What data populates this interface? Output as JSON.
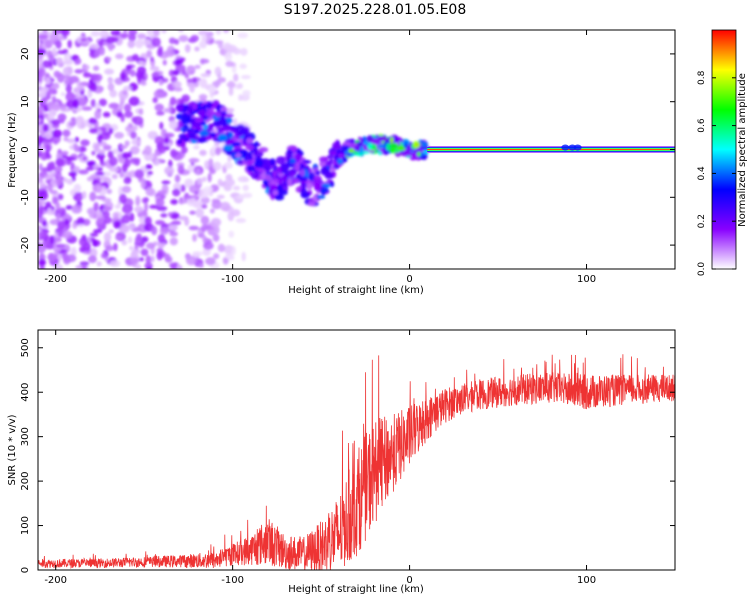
{
  "figure_title": "S197.2025.228.01.05.E08",
  "chart_data": [
    {
      "type": "heatmap",
      "title": "",
      "xlabel": "Height of straight line (km)",
      "ylabel": "Frequency (Hz)",
      "xlim": [
        -210,
        150
      ],
      "ylim": [
        -25,
        25
      ],
      "xticks": [
        -200,
        -100,
        0,
        100
      ],
      "yticks": [
        -20,
        -10,
        0,
        10,
        20
      ],
      "colorbar": {
        "label": "Normalized spectral amplitude",
        "range": [
          0,
          1
        ],
        "ticks": [
          0.0,
          0.2,
          0.4,
          0.6,
          0.8
        ],
        "tick_labels": [
          "0.0",
          "0.2",
          "0.4",
          "0.6",
          "0.8"
        ],
        "colormap": [
          "#ffffff",
          "#8800ff",
          "#0000ff",
          "#00ffff",
          "#00ff00",
          "#ffff00",
          "#ff0000"
        ]
      },
      "features": {
        "carrier_line": {
          "x_from": 10,
          "x_to": 150,
          "y": 0,
          "amplitude": 0.95
        },
        "noise_region": {
          "x_from": -210,
          "x_to": -130,
          "y_spread": 25,
          "amplitude": 0.15
        },
        "wandering_trace": [
          {
            "x": -130,
            "y": 5
          },
          {
            "x": -110,
            "y": 6
          },
          {
            "x": -95,
            "y": 1
          },
          {
            "x": -85,
            "y": -3
          },
          {
            "x": -75,
            "y": -7
          },
          {
            "x": -65,
            "y": -3
          },
          {
            "x": -55,
            "y": -8
          },
          {
            "x": -45,
            "y": -4
          },
          {
            "x": -35,
            "y": 0
          },
          {
            "x": -20,
            "y": 1
          },
          {
            "x": -10,
            "y": 1
          },
          {
            "x": 0,
            "y": 0
          },
          {
            "x": 10,
            "y": 0
          }
        ]
      }
    },
    {
      "type": "line",
      "title": "",
      "xlabel": "Height of straight line (km)",
      "ylabel": "SNR (10 * v/v)",
      "xlim": [
        -210,
        150
      ],
      "ylim": [
        0,
        540
      ],
      "xticks": [
        -200,
        -100,
        0,
        100
      ],
      "yticks": [
        0,
        100,
        200,
        300,
        400,
        500
      ],
      "series": [
        {
          "name": "SNR",
          "color": "#ee3333",
          "x": [
            -210,
            -180,
            -150,
            -130,
            -110,
            -100,
            -90,
            -80,
            -70,
            -60,
            -50,
            -40,
            -30,
            -20,
            -10,
            0,
            10,
            20,
            30,
            40,
            60,
            80,
            100,
            120,
            150
          ],
          "mean": [
            15,
            15,
            18,
            20,
            22,
            35,
            45,
            65,
            40,
            35,
            50,
            80,
            150,
            220,
            260,
            300,
            340,
            370,
            385,
            395,
            405,
            410,
            400,
            405,
            410
          ],
          "spread": [
            10,
            10,
            12,
            14,
            20,
            25,
            35,
            55,
            40,
            40,
            60,
            90,
            120,
            120,
            90,
            70,
            50,
            40,
            35,
            35,
            35,
            35,
            40,
            35,
            30
          ]
        }
      ]
    }
  ]
}
